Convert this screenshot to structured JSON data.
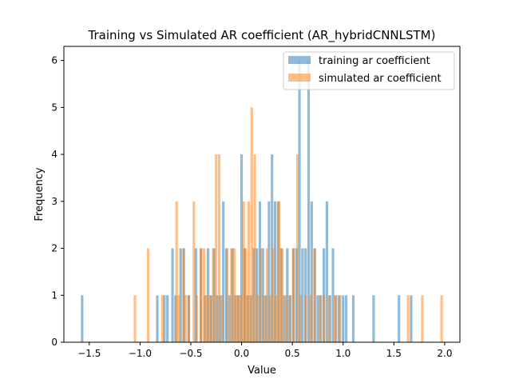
{
  "chart_data": {
    "type": "bar",
    "title": "Training vs Simulated AR coefficient (AR_hybridCNNLSTM)",
    "xlabel": "Value",
    "ylabel": "Frequency",
    "xlim": [
      -1.75,
      2.15
    ],
    "ylim": [
      0,
      6.3
    ],
    "bin_width": 0.025,
    "grid": false,
    "legend_position": "top-right",
    "x_ticks": [
      -1.5,
      -1.0,
      -0.5,
      0.0,
      0.5,
      1.0,
      1.5,
      2.0
    ],
    "x_tick_labels": [
      "−1.5",
      "−1.0",
      "−0.5",
      "0.0",
      "0.5",
      "1.0",
      "1.5",
      "2.0"
    ],
    "y_ticks": [
      0,
      1,
      2,
      3,
      4,
      5,
      6
    ],
    "y_tick_labels": [
      "0",
      "1",
      "2",
      "3",
      "4",
      "5",
      "6"
    ],
    "series": [
      {
        "name": "training ar coefficient",
        "color": "#1f77b4",
        "opacity": 0.5,
        "x": [
          -1.57,
          -0.83,
          -0.76,
          -0.73,
          -0.68,
          -0.65,
          -0.6,
          -0.57,
          -0.52,
          -0.45,
          -0.4,
          -0.36,
          -0.33,
          -0.3,
          -0.27,
          -0.24,
          -0.21,
          -0.18,
          -0.15,
          -0.12,
          -0.09,
          -0.06,
          -0.03,
          0.0,
          0.03,
          0.06,
          0.09,
          0.12,
          0.15,
          0.18,
          0.21,
          0.24,
          0.27,
          0.3,
          0.33,
          0.36,
          0.39,
          0.42,
          0.45,
          0.48,
          0.51,
          0.54,
          0.57,
          0.6,
          0.63,
          0.66,
          0.69,
          0.72,
          0.75,
          0.78,
          0.81,
          0.84,
          0.87,
          0.9,
          0.93,
          0.96,
          1.0,
          1.03,
          1.1,
          1.3,
          1.55,
          1.67
        ],
        "values": [
          1,
          1,
          1,
          1,
          2,
          1,
          2,
          2,
          1,
          2,
          2,
          1,
          2,
          1,
          2,
          1,
          1,
          3,
          2,
          1,
          2,
          1,
          1,
          4,
          2,
          1,
          1,
          2,
          2,
          3,
          2,
          1,
          3,
          4,
          3,
          3,
          2,
          1,
          2,
          1,
          2,
          2,
          6,
          2,
          2,
          6,
          3,
          2,
          1,
          1,
          2,
          3,
          1,
          2,
          1,
          1,
          1,
          1,
          1,
          1,
          1,
          1
        ]
      },
      {
        "name": "simulated ar coefficient",
        "color": "#ff7f0e",
        "opacity": 0.5,
        "x": [
          -1.05,
          -0.92,
          -0.78,
          -0.64,
          -0.62,
          -0.57,
          -0.55,
          -0.52,
          -0.47,
          -0.44,
          -0.4,
          -0.37,
          -0.34,
          -0.31,
          -0.28,
          -0.25,
          -0.22,
          -0.19,
          -0.14,
          -0.1,
          -0.07,
          -0.04,
          -0.01,
          0.02,
          0.04,
          0.07,
          0.1,
          0.13,
          0.16,
          0.19,
          0.22,
          0.25,
          0.28,
          0.31,
          0.34,
          0.37,
          0.4,
          0.44,
          0.47,
          0.51,
          0.55,
          0.58,
          0.63,
          0.68,
          0.72,
          0.77,
          0.81,
          0.86,
          0.92,
          0.97,
          1.64,
          1.78,
          1.97
        ],
        "values": [
          1,
          2,
          1,
          3,
          1,
          2,
          1,
          1,
          3,
          1,
          2,
          2,
          1,
          1,
          2,
          4,
          4,
          1,
          2,
          2,
          2,
          1,
          1,
          3,
          2,
          3,
          5,
          4,
          1,
          2,
          1,
          2,
          1,
          2,
          1,
          3,
          2,
          1,
          1,
          2,
          4,
          1,
          1,
          1,
          2,
          1,
          1,
          1,
          1,
          1,
          1,
          1,
          1
        ]
      }
    ]
  }
}
